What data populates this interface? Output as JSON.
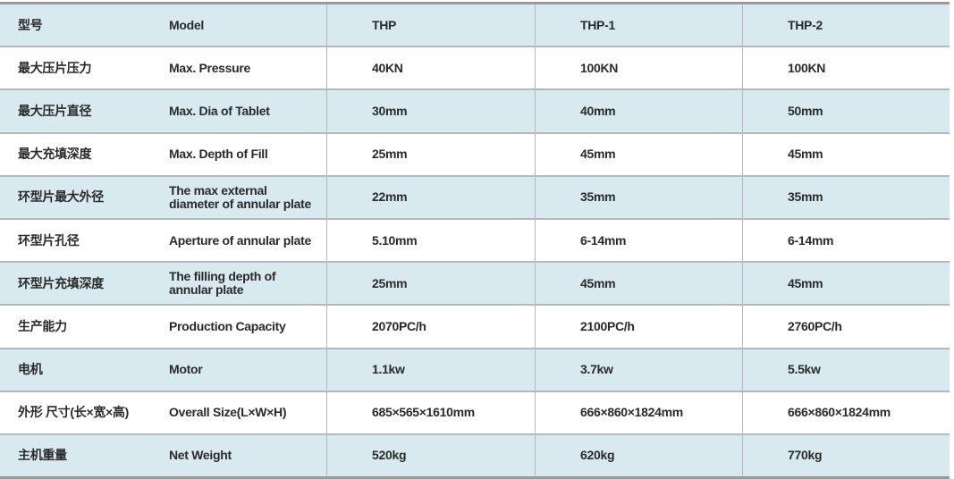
{
  "table": {
    "rows": [
      {
        "cn": "型号",
        "en": "Model",
        "thp": "THP",
        "thp1": "THP-1",
        "thp2": "THP-2"
      },
      {
        "cn": "最大压片压力",
        "en": "Max. Pressure",
        "thp": "40KN",
        "thp1": "100KN",
        "thp2": "100KN"
      },
      {
        "cn": "最大压片直径",
        "en": "Max. Dia of Tablet",
        "thp": "30mm",
        "thp1": "40mm",
        "thp2": "50mm"
      },
      {
        "cn": "最大充填深度",
        "en": "Max. Depth of Fill",
        "thp": "25mm",
        "thp1": "45mm",
        "thp2": "45mm"
      },
      {
        "cn": "环型片最大外径",
        "en": "The max external diameter of annular plate",
        "thp": "22mm",
        "thp1": "35mm",
        "thp2": "35mm"
      },
      {
        "cn": "环型片孔径",
        "en": "Aperture of annular plate",
        "thp": "5.10mm",
        "thp1": "6-14mm",
        "thp2": "6-14mm"
      },
      {
        "cn": "环型片充填深度",
        "en": "The filling depth of annular plate",
        "thp": "25mm",
        "thp1": "45mm",
        "thp2": "45mm"
      },
      {
        "cn": "生产能力",
        "en": "Production Capacity",
        "thp": "2070PC/h",
        "thp1": "2100PC/h",
        "thp2": "2760PC/h"
      },
      {
        "cn": "电机",
        "en": "Motor",
        "thp": "1.1kw",
        "thp1": "3.7kw",
        "thp2": "5.5kw"
      },
      {
        "cn": "外形 尺寸(长×宽×高)",
        "en": "Overall Size(L×W×H)",
        "thp": "685×565×1610mm",
        "thp1": "666×860×1824mm",
        "thp2": "666×860×1824mm"
      },
      {
        "cn": "主机重量",
        "en": "Net Weight",
        "thp": "520kg",
        "thp1": "620kg",
        "thp2": "770kg"
      }
    ]
  },
  "colors": {
    "row_blue": "#d8eaf0",
    "row_white": "#ffffff",
    "border": "#9a9a9a"
  }
}
